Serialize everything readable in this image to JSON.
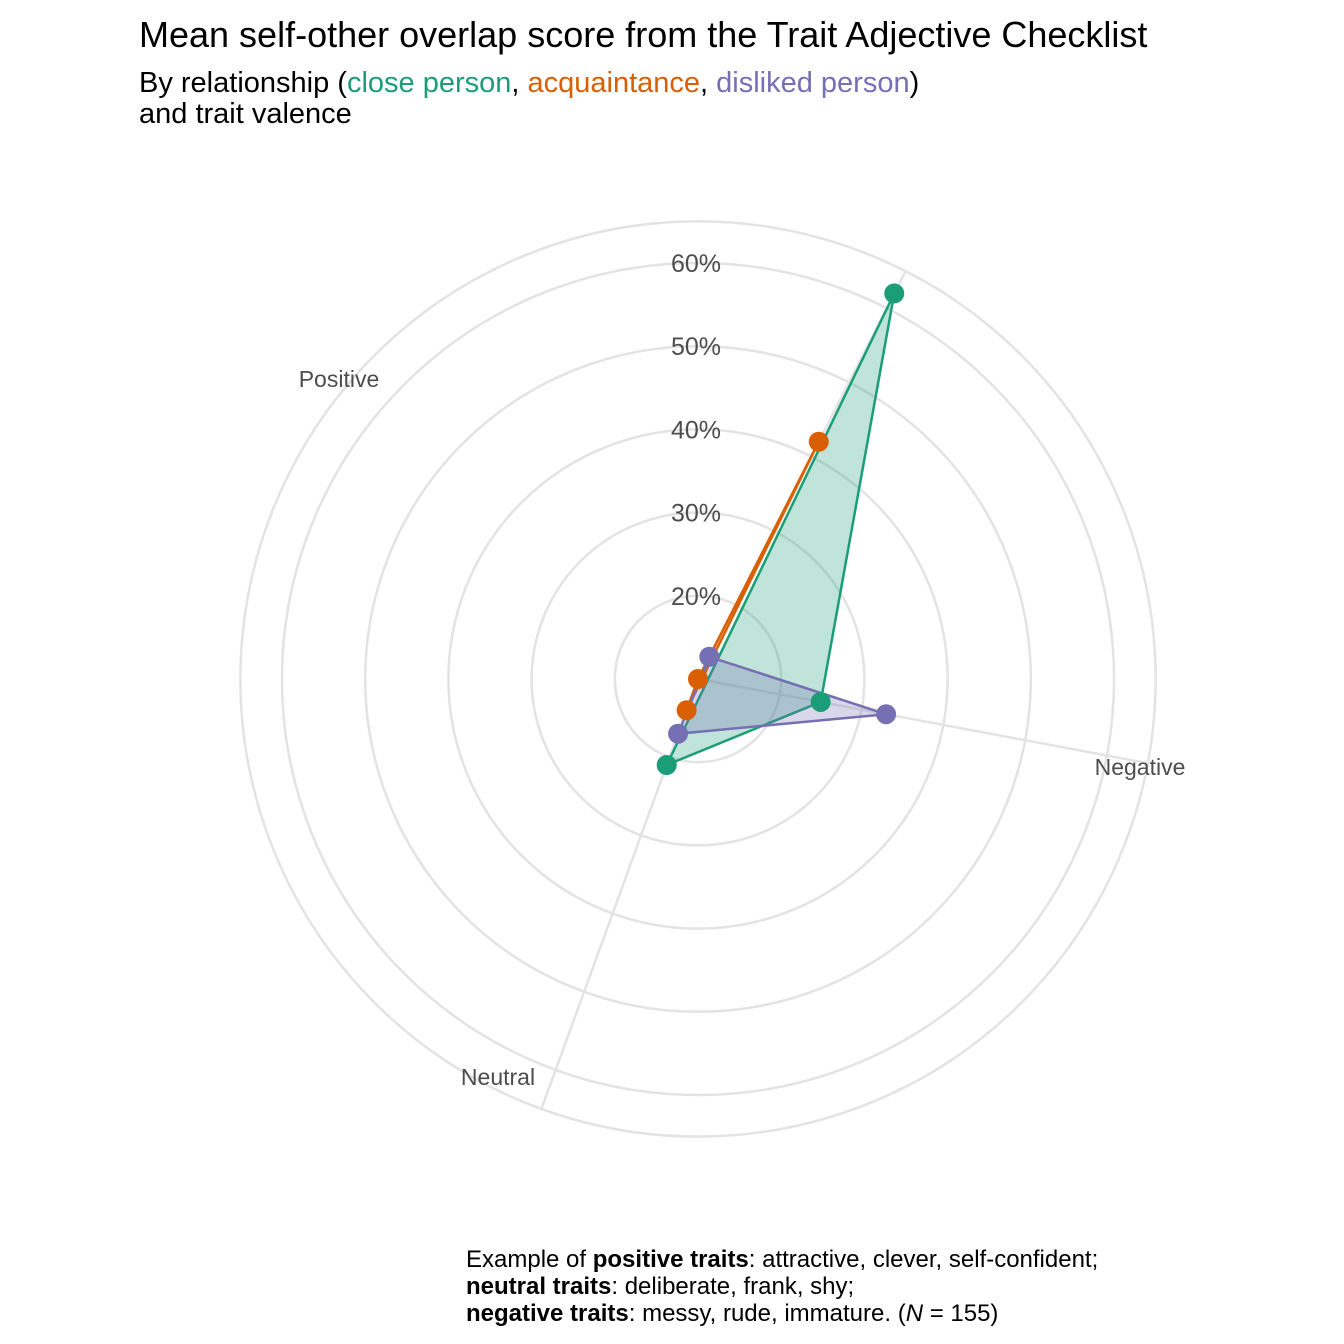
{
  "title": "Mean self-other overlap score from the Trait Adjective Checklist",
  "subtitle": {
    "prefix": "By relationship (",
    "sep1": ", ",
    "sep2": ", ",
    "suffix": ")",
    "line2": "and trait valence"
  },
  "caption": {
    "l1_pre": "Example of ",
    "l1_bold": "positive traits",
    "l1_post": ": attractive, clever, self-confident;",
    "l2_bold": "neutral traits",
    "l2_post": ": deliberate, frank, shy;",
    "l3_bold": "negative traits",
    "l3_post": ": messy, rude, immature. (",
    "l3_italic": "N",
    "l3_end": " = 155)"
  },
  "chart_data": {
    "type": "radar",
    "axes": [
      "Positive",
      "Negative",
      "Neutral"
    ],
    "radial_ticks": [
      "20%",
      "30%",
      "40%",
      "50%",
      "60%"
    ],
    "radial_tick_values": [
      20,
      30,
      40,
      50,
      60
    ],
    "radial_range": [
      10,
      65
    ],
    "grid": true,
    "series": [
      {
        "name": "close person",
        "color": "#1B9E77",
        "values": [
          62,
          25,
          21
        ]
      },
      {
        "name": "acquaintance",
        "color": "#D95F02",
        "values": [
          42,
          10,
          14
        ]
      },
      {
        "name": "disliked person",
        "color": "#7570B3",
        "values": [
          13,
          33,
          17
        ]
      }
    ]
  }
}
